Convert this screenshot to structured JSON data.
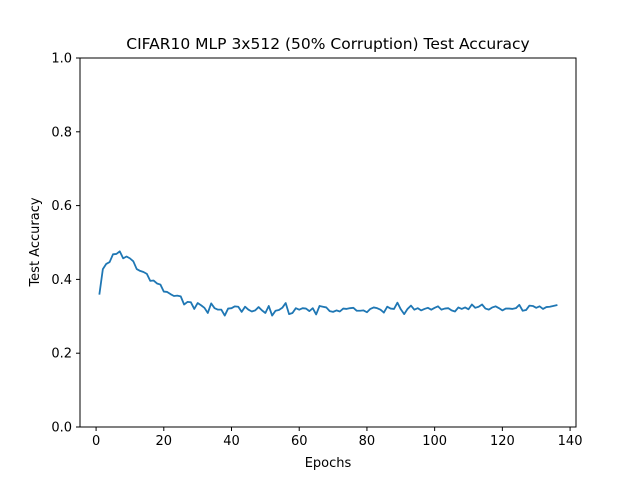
{
  "chart_data": {
    "type": "line",
    "title": "CIFAR10 MLP 3x512 (50% Corruption) Test Accuracy",
    "xlabel": "Epochs",
    "ylabel": "Test Accuracy",
    "xlim": [
      -4.75,
      141.75
    ],
    "ylim": [
      0.0,
      1.0
    ],
    "xticks": [
      0,
      20,
      40,
      60,
      80,
      100,
      120,
      140
    ],
    "yticks": [
      0.0,
      0.2,
      0.4,
      0.6,
      0.8,
      1.0
    ],
    "xtick_labels": [
      "0",
      "20",
      "40",
      "60",
      "80",
      "100",
      "120",
      "140"
    ],
    "ytick_labels": [
      "0.0",
      "0.2",
      "0.4",
      "0.6",
      "0.8",
      "1.0"
    ],
    "grid": false,
    "legend": "none",
    "series": [
      {
        "color": "#1f77b4",
        "x": [
          1,
          2,
          3,
          4,
          5,
          6,
          7,
          8,
          9,
          10,
          11,
          12,
          13,
          14,
          15,
          16,
          17,
          18,
          19,
          20,
          21,
          22,
          23,
          24,
          25,
          26,
          27,
          28,
          29,
          30,
          31,
          32,
          33,
          34,
          35,
          36,
          37,
          38,
          39,
          40,
          41,
          42,
          43,
          44,
          45,
          46,
          47,
          48,
          49,
          50,
          51,
          52,
          53,
          54,
          55,
          56,
          57,
          58,
          59,
          60,
          61,
          62,
          63,
          64,
          65,
          66,
          67,
          68,
          69,
          70,
          71,
          72,
          73,
          74,
          75,
          76,
          77,
          78,
          79,
          80,
          81,
          82,
          83,
          84,
          85,
          86,
          87,
          88,
          89,
          90,
          91,
          92,
          93,
          94,
          95,
          96,
          97,
          98,
          99,
          100,
          101,
          102,
          103,
          104,
          105,
          106,
          107,
          108,
          109,
          110,
          111,
          112,
          113,
          114,
          115,
          116,
          117,
          118,
          119,
          120,
          121,
          122,
          123,
          124,
          125,
          126,
          127,
          128,
          129,
          130,
          131,
          132,
          133,
          134,
          135,
          136
        ],
        "y": [
          0.361,
          0.428,
          0.442,
          0.447,
          0.468,
          0.469,
          0.476,
          0.457,
          0.462,
          0.457,
          0.449,
          0.428,
          0.423,
          0.42,
          0.415,
          0.396,
          0.397,
          0.389,
          0.386,
          0.367,
          0.366,
          0.36,
          0.355,
          0.356,
          0.354,
          0.332,
          0.339,
          0.338,
          0.32,
          0.336,
          0.33,
          0.323,
          0.309,
          0.335,
          0.322,
          0.318,
          0.318,
          0.302,
          0.321,
          0.322,
          0.327,
          0.326,
          0.312,
          0.326,
          0.318,
          0.313,
          0.316,
          0.325,
          0.316,
          0.309,
          0.328,
          0.302,
          0.315,
          0.317,
          0.323,
          0.336,
          0.306,
          0.309,
          0.322,
          0.318,
          0.322,
          0.321,
          0.314,
          0.322,
          0.305,
          0.328,
          0.326,
          0.324,
          0.314,
          0.312,
          0.316,
          0.313,
          0.321,
          0.32,
          0.322,
          0.323,
          0.315,
          0.315,
          0.316,
          0.311,
          0.32,
          0.324,
          0.322,
          0.318,
          0.31,
          0.326,
          0.321,
          0.32,
          0.337,
          0.319,
          0.306,
          0.32,
          0.329,
          0.318,
          0.322,
          0.316,
          0.32,
          0.323,
          0.318,
          0.323,
          0.327,
          0.318,
          0.321,
          0.322,
          0.316,
          0.313,
          0.324,
          0.32,
          0.324,
          0.319,
          0.332,
          0.323,
          0.326,
          0.332,
          0.321,
          0.318,
          0.324,
          0.327,
          0.322,
          0.316,
          0.321,
          0.321,
          0.32,
          0.322,
          0.331,
          0.315,
          0.317,
          0.329,
          0.328,
          0.323,
          0.327,
          0.32,
          0.325,
          0.326,
          0.328,
          0.33
        ]
      }
    ]
  }
}
